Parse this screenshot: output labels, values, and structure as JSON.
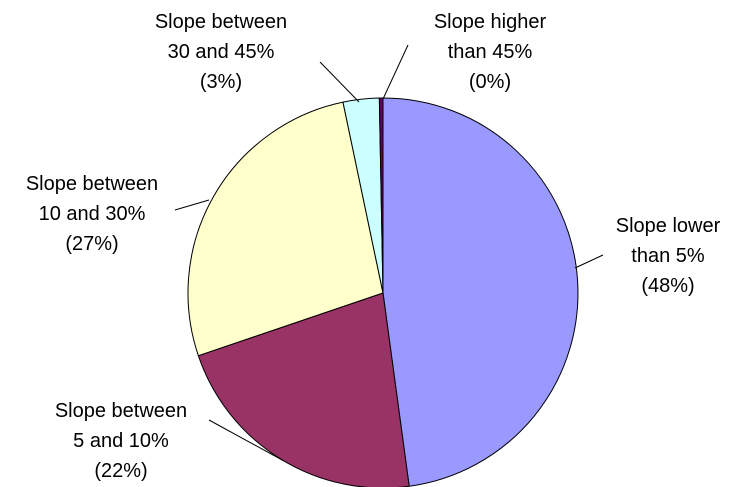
{
  "chart_data": {
    "type": "pie",
    "title": "",
    "slices": [
      {
        "label_lines": [
          "Slope lower",
          "than 5%",
          "(48%)"
        ],
        "percent_text": "48%",
        "value": 48.0,
        "color": "#9999FF"
      },
      {
        "label_lines": [
          "Slope between",
          "5 and 10%",
          "(22%)"
        ],
        "percent_text": "22%",
        "value": 22.0,
        "color": "#993366"
      },
      {
        "label_lines": [
          "Slope between",
          "10 and 30%",
          "(27%)"
        ],
        "percent_text": "27%",
        "value": 27.0,
        "color": "#FFFFCC"
      },
      {
        "label_lines": [
          "Slope between",
          "30 and 45%",
          "(3%)"
        ],
        "percent_text": "3%",
        "value": 3.0,
        "color": "#CCFFFF"
      },
      {
        "label_lines": [
          "Slope higher",
          "than 45%",
          "(0%)"
        ],
        "percent_text": "0%",
        "value": 0.3,
        "color": "#660066"
      }
    ],
    "start_angle": "12 o'clock",
    "direction": "clockwise",
    "legend": "none"
  }
}
